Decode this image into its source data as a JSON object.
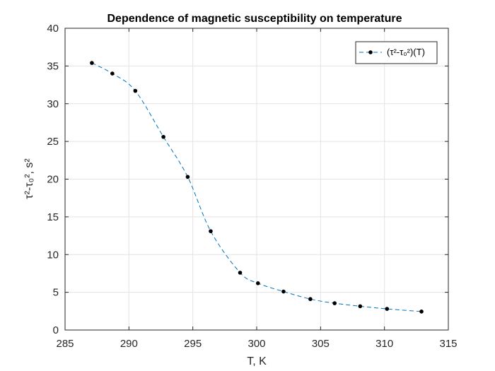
{
  "chart_data": {
    "type": "line",
    "title": "Dependence  of magnetic susceptibility on temperature",
    "xlabel": "T, K",
    "ylabel": "τ²-τ₀², s²",
    "xlim": [
      285,
      315
    ],
    "ylim": [
      0,
      40
    ],
    "xticks": [
      285,
      290,
      295,
      300,
      305,
      310,
      315
    ],
    "yticks": [
      0,
      5,
      10,
      15,
      20,
      25,
      30,
      35,
      40
    ],
    "grid": true,
    "legend_position": "top-right",
    "series": [
      {
        "name": "(τ²-τ₀²)(T)",
        "color": "#0072BD",
        "marker_color": "#000000",
        "line_style": "dashed",
        "x": [
          287.1,
          288.7,
          290.5,
          292.7,
          294.6,
          296.4,
          298.7,
          300.1,
          302.1,
          304.2,
          306.1,
          308.1,
          310.2,
          312.9
        ],
        "y": [
          35.4,
          34.0,
          31.7,
          25.6,
          20.3,
          13.1,
          7.6,
          6.2,
          5.1,
          4.1,
          3.55,
          3.15,
          2.8,
          2.45
        ]
      }
    ]
  }
}
